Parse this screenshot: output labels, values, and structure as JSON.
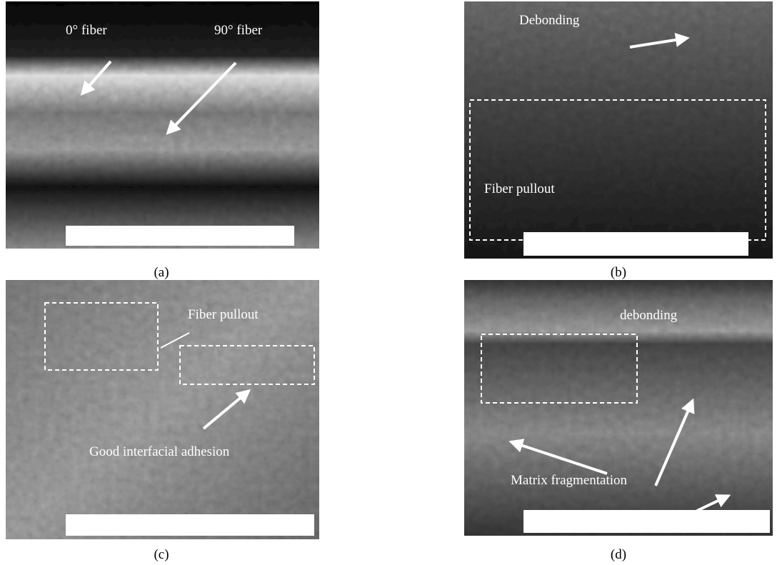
{
  "panels": [
    {
      "label": "(a)",
      "annotations": [
        "0° fiber",
        "90° fiber"
      ]
    },
    {
      "label": "(b)",
      "annotations": [
        "Debonding",
        "Fiber pullout"
      ]
    },
    {
      "label": "(c)",
      "annotations": [
        "Fiber pullout",
        "Good interfacial adhesion"
      ]
    },
    {
      "label": "(d)",
      "annotations": [
        "debonding",
        "Matrix fragmentation"
      ]
    }
  ]
}
